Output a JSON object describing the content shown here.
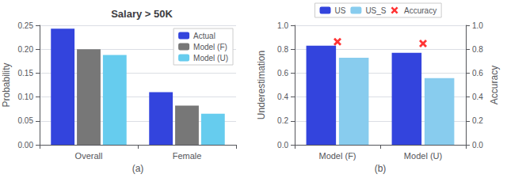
{
  "chart_data": [
    {
      "type": "bar",
      "title": "Salary > 50K",
      "categories": [
        "Overall",
        "Female"
      ],
      "series": [
        {
          "name": "Actual",
          "color": "#3344dd",
          "values": [
            0.243,
            0.11
          ]
        },
        {
          "name": "Model (F)",
          "color": "#777777",
          "values": [
            0.2,
            0.082
          ]
        },
        {
          "name": "Model (U)",
          "color": "#66ccee",
          "values": [
            0.188,
            0.065
          ]
        }
      ],
      "xlabel": "(a)",
      "ylabel": "Probability",
      "ylim": [
        0,
        0.25
      ],
      "yticks": [
        {
          "value": 0,
          "label": "0.00"
        },
        0.05,
        {
          "value": 0.1,
          "label": "0.10"
        },
        0.15,
        {
          "value": 0.2,
          "label": "0.20"
        },
        0.25
      ],
      "grid": true,
      "legend": "upper right"
    },
    {
      "type": "bar",
      "categories": [
        "Model (F)",
        "Model (U)"
      ],
      "series": [
        {
          "name": "US",
          "color": "#3344dd",
          "values": [
            0.83,
            0.77
          ]
        },
        {
          "name": "US_S",
          "color": "#88ccee",
          "values": [
            0.728,
            0.558
          ]
        },
        {
          "name": "Accuracy",
          "type": "scatter",
          "marker": "x",
          "color": "red",
          "axis": "y2",
          "values": [
            0.862,
            0.848
          ]
        }
      ],
      "xlabel": "(b)",
      "ylabel": "Underestimation",
      "y2label": "Accuracy",
      "ylim": [
        0.0,
        1.0
      ],
      "yticks": [
        {
          "value": 0,
          "label": "0.0"
        },
        0.2,
        0.4,
        0.6,
        0.8,
        {
          "value": 1,
          "label": "1.0"
        }
      ],
      "y2lim": [
        0.0,
        1.0
      ],
      "y2ticks": [
        {
          "value": 0,
          "label": "0.0"
        },
        0.2,
        0.4,
        0.6,
        0.8,
        {
          "value": 1,
          "label": "1.0"
        }
      ],
      "grid": true,
      "legend": "upper center"
    }
  ]
}
